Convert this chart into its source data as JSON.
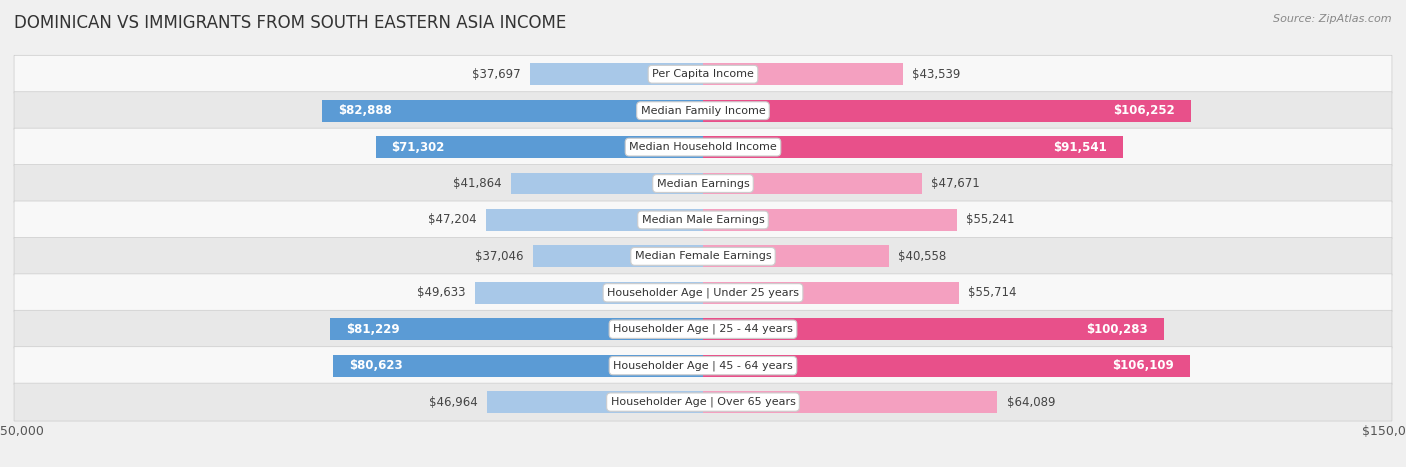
{
  "title": "DOMINICAN VS IMMIGRANTS FROM SOUTH EASTERN ASIA INCOME",
  "source": "Source: ZipAtlas.com",
  "categories": [
    "Per Capita Income",
    "Median Family Income",
    "Median Household Income",
    "Median Earnings",
    "Median Male Earnings",
    "Median Female Earnings",
    "Householder Age | Under 25 years",
    "Householder Age | 25 - 44 years",
    "Householder Age | 45 - 64 years",
    "Householder Age | Over 65 years"
  ],
  "dominican_values": [
    37697,
    82888,
    71302,
    41864,
    47204,
    37046,
    49633,
    81229,
    80623,
    46964
  ],
  "immigrant_values": [
    43539,
    106252,
    91541,
    47671,
    55241,
    40558,
    55714,
    100283,
    106109,
    64089
  ],
  "dominican_color_light": "#a8c8e8",
  "dominican_color_dark": "#5b9bd5",
  "immigrant_color_light": "#f4a0c0",
  "immigrant_color_dark": "#e8508a",
  "bar_height": 0.6,
  "xlim": 150000,
  "background_color": "#f0f0f0",
  "row_bg_odd": "#f8f8f8",
  "row_bg_even": "#e8e8e8",
  "title_fontsize": 12,
  "label_fontsize": 8.5,
  "tick_fontsize": 9,
  "legend_fontsize": 9,
  "value_threshold_white": 65000,
  "cat_label_fontsize": 8
}
